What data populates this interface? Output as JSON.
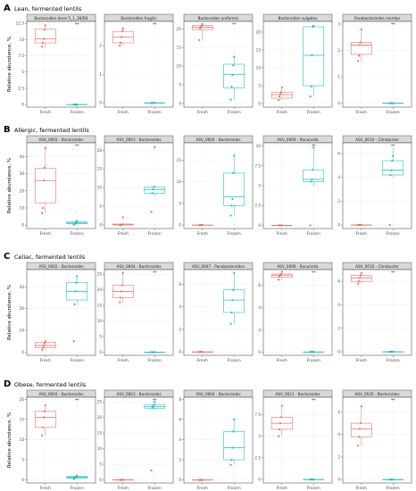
{
  "colors": {
    "fresh": "#E8706A",
    "frozen": "#1FBFC4",
    "strip": "#D9D9D9",
    "grid": "#EBEBEB",
    "border": "#333333"
  },
  "chart_data": [
    {
      "type": "boxplot",
      "label": "A",
      "title": "Lean, fermented lentils",
      "ylabel": "Relative abundance, %",
      "categories": [
        "Fresh",
        "Frozen"
      ],
      "panels": [
        {
          "name": "Bacteroides dorei 5_1_36/D4",
          "ylim": [
            -0.4,
            12.8
          ],
          "yticks": [
            0.0,
            2.5,
            5.0,
            7.5,
            10.0,
            12.5
          ],
          "sig": "**",
          "fresh": {
            "q1": 9.5,
            "median": 10.1,
            "q3": 11.6,
            "lower": 8.9,
            "upper": 12.2,
            "points": [
              8.9,
              9.5,
              10.1,
              11.5,
              12.2
            ]
          },
          "frozen": {
            "q1": 0.0,
            "median": 0.0,
            "q3": 0.0,
            "lower": 0.0,
            "upper": 0.0,
            "points": [
              0.0,
              0.0,
              0.0,
              0.0,
              0.0
            ]
          }
        },
        {
          "name": "Bacteroides fragilis",
          "ylim": [
            -0.15,
            2.85
          ],
          "yticks": [
            0,
            1,
            2
          ],
          "sig": "**",
          "fresh": {
            "q1": 2.1,
            "median": 2.3,
            "q3": 2.5,
            "lower": 2.0,
            "upper": 2.6,
            "points": [
              2.0,
              2.1,
              2.3,
              2.5,
              2.6
            ]
          },
          "frozen": {
            "q1": 0.0,
            "median": 0.0,
            "q3": 0.0,
            "lower": 0.0,
            "upper": 0.0,
            "points": [
              0.0,
              0.0,
              0.0,
              0.0,
              0.0
            ]
          }
        },
        {
          "name": "Bacteroides uniformis",
          "ylim": [
            -1,
            22
          ],
          "yticks": [
            0,
            5,
            10,
            15,
            20
          ],
          "sig": "**",
          "fresh": {
            "q1": 19.8,
            "median": 20.4,
            "q3": 20.9,
            "lower": 17.0,
            "upper": 21.3,
            "points": [
              17.0,
              20.1,
              20.5,
              20.9,
              21.3
            ]
          },
          "frozen": {
            "q1": 4.2,
            "median": 7.8,
            "q3": 10.5,
            "lower": 1.0,
            "upper": 12.5,
            "points": [
              1.0,
              4.5,
              7.6,
              10.2,
              12.5
            ]
          }
        },
        {
          "name": "Bacteroides vulgatus",
          "ylim": [
            -1,
            23
          ],
          "yticks": [
            0,
            5,
            10,
            15,
            20
          ],
          "sig": "",
          "fresh": {
            "q1": 1.5,
            "median": 2.5,
            "q3": 3.2,
            "lower": 1.0,
            "upper": 4.5,
            "points": [
              1.0,
              2.0,
              2.7,
              3.2,
              4.5
            ]
          },
          "frozen": {
            "q1": 5.0,
            "median": 13.5,
            "q3": 21.5,
            "lower": 2.0,
            "upper": 21.8,
            "points": [
              2.0,
              4.8,
              13.5,
              21.5,
              21.8
            ]
          }
        },
        {
          "name": "Parabacteroides merdae",
          "ylim": [
            -0.15,
            3.1
          ],
          "yticks": [
            0,
            1,
            2,
            3
          ],
          "sig": "**",
          "fresh": {
            "q1": 1.85,
            "median": 2.2,
            "q3": 2.3,
            "lower": 1.6,
            "upper": 2.8,
            "points": [
              1.6,
              1.8,
              2.2,
              2.3,
              2.8
            ]
          },
          "frozen": {
            "q1": 0.0,
            "median": 0.0,
            "q3": 0.0,
            "lower": 0.0,
            "upper": 0.0,
            "points": [
              0.0,
              0.0,
              0.0,
              0.0,
              0.0
            ]
          }
        }
      ]
    },
    {
      "type": "boxplot",
      "label": "B",
      "title": "Allergic, fermented lentils",
      "ylabel": "Relative abundance, %",
      "categories": [
        "Fresh",
        "Frozen"
      ],
      "panels": [
        {
          "name": "ASV_0002 - Bacteroides",
          "ylim": [
            -2,
            48
          ],
          "yticks": [
            0,
            10,
            20,
            30,
            40
          ],
          "sig": "**",
          "fresh": {
            "q1": 13.0,
            "median": 26.0,
            "q3": 33.0,
            "lower": 7.0,
            "upper": 45.0,
            "points": [
              7.0,
              10.0,
              26.0,
              33.5,
              45.0
            ]
          },
          "frozen": {
            "q1": 0.8,
            "median": 1.2,
            "q3": 1.8,
            "lower": 0.2,
            "upper": 2.5,
            "points": [
              0.3,
              0.8,
              1.2,
              1.8,
              2.5
            ]
          }
        },
        {
          "name": "ASV_0003 - Bacteroides",
          "ylim": [
            -1,
            22
          ],
          "yticks": [
            0,
            5,
            10,
            15,
            20
          ],
          "sig": "",
          "fresh": {
            "q1": 0.0,
            "median": 0.0,
            "q3": 0.2,
            "lower": 0.0,
            "upper": 0.3,
            "points": [
              0.0,
              0.0,
              0.0,
              0.1,
              2.0
            ]
          },
          "frozen": {
            "q1": 8.5,
            "median": 9.5,
            "q3": 10.2,
            "lower": 7.5,
            "upper": 10.5,
            "points": [
              3.5,
              8.5,
              9.5,
              10.2,
              20.8
            ]
          }
        },
        {
          "name": "ASV_0004 - Bacteroides",
          "ylim": [
            -0.8,
            19
          ],
          "yticks": [
            0,
            5,
            10,
            15
          ],
          "sig": "",
          "fresh": {
            "q1": 0.0,
            "median": 0.0,
            "q3": 0.0,
            "lower": 0.0,
            "upper": 0.0,
            "points": [
              0.0,
              0.0,
              0.0,
              0.0,
              0.0
            ]
          },
          "frozen": {
            "q1": 4.5,
            "median": 6.5,
            "q3": 12.0,
            "lower": 2.2,
            "upper": 16.5,
            "points": [
              2.2,
              4.5,
              6.0,
              12.0,
              16.0
            ]
          }
        },
        {
          "name": "ASV_0009 - Ranuhella",
          "ylim": [
            -0.4,
            10.4
          ],
          "yticks": [
            0.0,
            2.5,
            5.0,
            7.5,
            10.0
          ],
          "sig": "**",
          "fresh": {
            "q1": 0.0,
            "median": 0.0,
            "q3": 0.0,
            "lower": 0.0,
            "upper": 0.0,
            "points": [
              0.0,
              0.0,
              0.0,
              0.0,
              0.0
            ]
          },
          "frozen": {
            "q1": 5.5,
            "median": 5.8,
            "q3": 7.0,
            "lower": 5.0,
            "upper": 9.8,
            "points": [
              0.0,
              5.5,
              5.8,
              7.0,
              9.8
            ]
          }
        },
        {
          "name": "ASV_0010 - Citrobacter",
          "ylim": [
            -0.3,
            6.9
          ],
          "yticks": [
            0,
            2,
            4,
            6
          ],
          "sig": "**",
          "fresh": {
            "q1": 0.0,
            "median": 0.0,
            "q3": 0.0,
            "lower": 0.0,
            "upper": 0.0,
            "points": [
              0.0,
              0.0,
              0.0,
              0.0,
              0.0
            ]
          },
          "frozen": {
            "q1": 4.2,
            "median": 4.6,
            "q3": 5.4,
            "lower": 4.0,
            "upper": 6.5,
            "points": [
              0.0,
              4.2,
              4.6,
              5.4,
              5.8
            ]
          }
        }
      ]
    },
    {
      "type": "boxplot",
      "label": "C",
      "title": "Celiac, fermented lentils",
      "ylabel": "Relative abundance, %",
      "categories": [
        "Fresh",
        "Frozen"
      ],
      "panels": [
        {
          "name": "ASV_0002 - Bacteroides",
          "ylim": [
            -1.5,
            38
          ],
          "yticks": [
            0,
            10,
            20,
            30
          ],
          "sig": "",
          "fresh": {
            "q1": 2.0,
            "median": 3.0,
            "q3": 4.5,
            "lower": 1.0,
            "upper": 5.0,
            "points": [
              1.0,
              2.0,
              3.0,
              4.0,
              5.0
            ]
          },
          "frozen": {
            "q1": 24.0,
            "median": 28.0,
            "q3": 32.0,
            "lower": 22.0,
            "upper": 35.0,
            "points": [
              5.0,
              22.0,
              28.0,
              32.0,
              35.0
            ]
          }
        },
        {
          "name": "ASV_0004 - Bacteroides",
          "ylim": [
            -1,
            26.5
          ],
          "yticks": [
            0,
            5,
            10,
            15,
            20,
            25
          ],
          "sig": "**",
          "fresh": {
            "q1": 17.5,
            "median": 19.5,
            "q3": 21.5,
            "lower": 16.0,
            "upper": 25.5,
            "points": [
              16.0,
              17.5,
              19.5,
              21.5,
              25.5
            ]
          },
          "frozen": {
            "q1": 0.0,
            "median": 0.0,
            "q3": 0.0,
            "lower": 0.0,
            "upper": 0.0,
            "points": [
              0.0,
              0.0,
              0.0,
              0.0,
              0.0
            ]
          }
        },
        {
          "name": "ASV_0007 - Parabacteroides",
          "ylim": [
            -0.3,
            7.3
          ],
          "yticks": [
            0,
            2,
            4,
            6
          ],
          "sig": "",
          "fresh": {
            "q1": 0.0,
            "median": 0.0,
            "q3": 0.0,
            "lower": 0.0,
            "upper": 0.0,
            "points": [
              0.0,
              0.0,
              0.0,
              0.0,
              0.0
            ]
          },
          "frozen": {
            "q1": 3.5,
            "median": 4.6,
            "q3": 5.5,
            "lower": 2.5,
            "upper": 7.0,
            "points": [
              2.5,
              3.5,
              4.6,
              5.5,
              7.0
            ]
          }
        },
        {
          "name": "ASV_0009 - Ranuhella",
          "ylim": [
            -0.3,
            7.4
          ],
          "yticks": [
            0,
            2,
            4,
            6
          ],
          "sig": "**",
          "fresh": {
            "q1": 6.7,
            "median": 6.9,
            "q3": 7.0,
            "lower": 6.5,
            "upper": 7.2,
            "points": [
              6.5,
              6.8,
              6.9,
              7.0,
              7.2
            ]
          },
          "frozen": {
            "q1": 0.0,
            "median": 0.0,
            "q3": 0.0,
            "lower": 0.0,
            "upper": 0.0,
            "points": [
              0.0,
              0.0,
              0.0,
              0.0,
              0.0
            ]
          }
        },
        {
          "name": "ASV_0010 - Citrobacter",
          "ylim": [
            -0.3,
            7.0
          ],
          "yticks": [
            0,
            2,
            4,
            6
          ],
          "sig": "**",
          "fresh": {
            "q1": 6.0,
            "median": 6.3,
            "q3": 6.5,
            "lower": 5.8,
            "upper": 6.7,
            "points": [
              5.8,
              6.0,
              6.3,
              6.5,
              6.7
            ]
          },
          "frozen": {
            "q1": 0.0,
            "median": 0.0,
            "q3": 0.0,
            "lower": 0.0,
            "upper": 0.0,
            "points": [
              0.0,
              0.0,
              0.0,
              0.0,
              0.0
            ]
          }
        }
      ]
    },
    {
      "type": "boxplot",
      "label": "D",
      "title": "Obese, fermented lentils",
      "ylabel": "Relative abundance, %",
      "categories": [
        "Fresh",
        "Frozen"
      ],
      "panels": [
        {
          "name": "ASV_0002 - Bacteroides",
          "ylim": [
            -0.8,
            20.5
          ],
          "yticks": [
            0,
            5,
            10,
            15,
            20
          ],
          "sig": "**",
          "fresh": {
            "q1": 13.0,
            "median": 15.5,
            "q3": 17.0,
            "lower": 11.0,
            "upper": 18.5,
            "points": [
              11.0,
              13.0,
              15.5,
              17.0,
              18.5
            ]
          },
          "frozen": {
            "q1": 0.4,
            "median": 0.6,
            "q3": 0.8,
            "lower": 0.2,
            "upper": 1.0,
            "points": [
              0.2,
              0.4,
              0.6,
              0.8,
              1.0
            ]
          }
        },
        {
          "name": "ASV_0003 - Bacteroides",
          "ylim": [
            -1,
            26.5
          ],
          "yticks": [
            0,
            5,
            10,
            15,
            20,
            25
          ],
          "sig": "**",
          "fresh": {
            "q1": 0.0,
            "median": 0.0,
            "q3": 0.0,
            "lower": 0.0,
            "upper": 0.0,
            "points": [
              0.0,
              0.0,
              0.0,
              0.0,
              0.0
            ]
          },
          "frozen": {
            "q1": 23.0,
            "median": 23.5,
            "q3": 24.0,
            "lower": 22.5,
            "upper": 25.0,
            "points": [
              3.0,
              23.0,
              23.5,
              24.0,
              25.0
            ]
          }
        },
        {
          "name": "ASV_0004 - Bacteroides",
          "ylim": [
            -0.3,
            8.2
          ],
          "yticks": [
            0,
            2,
            4,
            6,
            8
          ],
          "sig": "",
          "fresh": {
            "q1": 0.0,
            "median": 0.0,
            "q3": 0.0,
            "lower": 0.0,
            "upper": 0.0,
            "points": [
              0.0,
              0.0,
              0.0,
              0.0,
              0.0
            ]
          },
          "frozen": {
            "q1": 2.0,
            "median": 3.2,
            "q3": 4.8,
            "lower": 1.5,
            "upper": 6.0,
            "points": [
              1.5,
              2.0,
              3.2,
              4.8,
              6.0
            ]
          }
        },
        {
          "name": "ASV_0012 - Bacteroides",
          "ylim": [
            -0.4,
            9.5
          ],
          "yticks": [
            0.0,
            2.5,
            5.0,
            7.5
          ],
          "sig": "**",
          "fresh": {
            "q1": 5.8,
            "median": 6.5,
            "q3": 7.2,
            "lower": 5.0,
            "upper": 8.5,
            "points": [
              5.0,
              5.8,
              6.5,
              7.2,
              8.5
            ]
          },
          "frozen": {
            "q1": 0.0,
            "median": 0.0,
            "q3": 0.0,
            "lower": 0.0,
            "upper": 0.0,
            "points": [
              0.0,
              0.0,
              0.0,
              0.0,
              0.0
            ]
          }
        },
        {
          "name": "ASV_0035 - Bacteroides",
          "ylim": [
            -0.3,
            7.3
          ],
          "yticks": [
            0,
            2,
            4,
            6
          ],
          "sig": "**",
          "fresh": {
            "q1": 3.8,
            "median": 4.5,
            "q3": 5.0,
            "lower": 3.0,
            "upper": 6.5,
            "points": [
              3.0,
              3.8,
              4.5,
              5.0,
              6.5
            ]
          },
          "frozen": {
            "q1": 0.0,
            "median": 0.0,
            "q3": 0.0,
            "lower": 0.0,
            "upper": 0.0,
            "points": [
              0.0,
              0.0,
              0.0,
              0.0,
              0.0
            ]
          }
        }
      ]
    }
  ]
}
